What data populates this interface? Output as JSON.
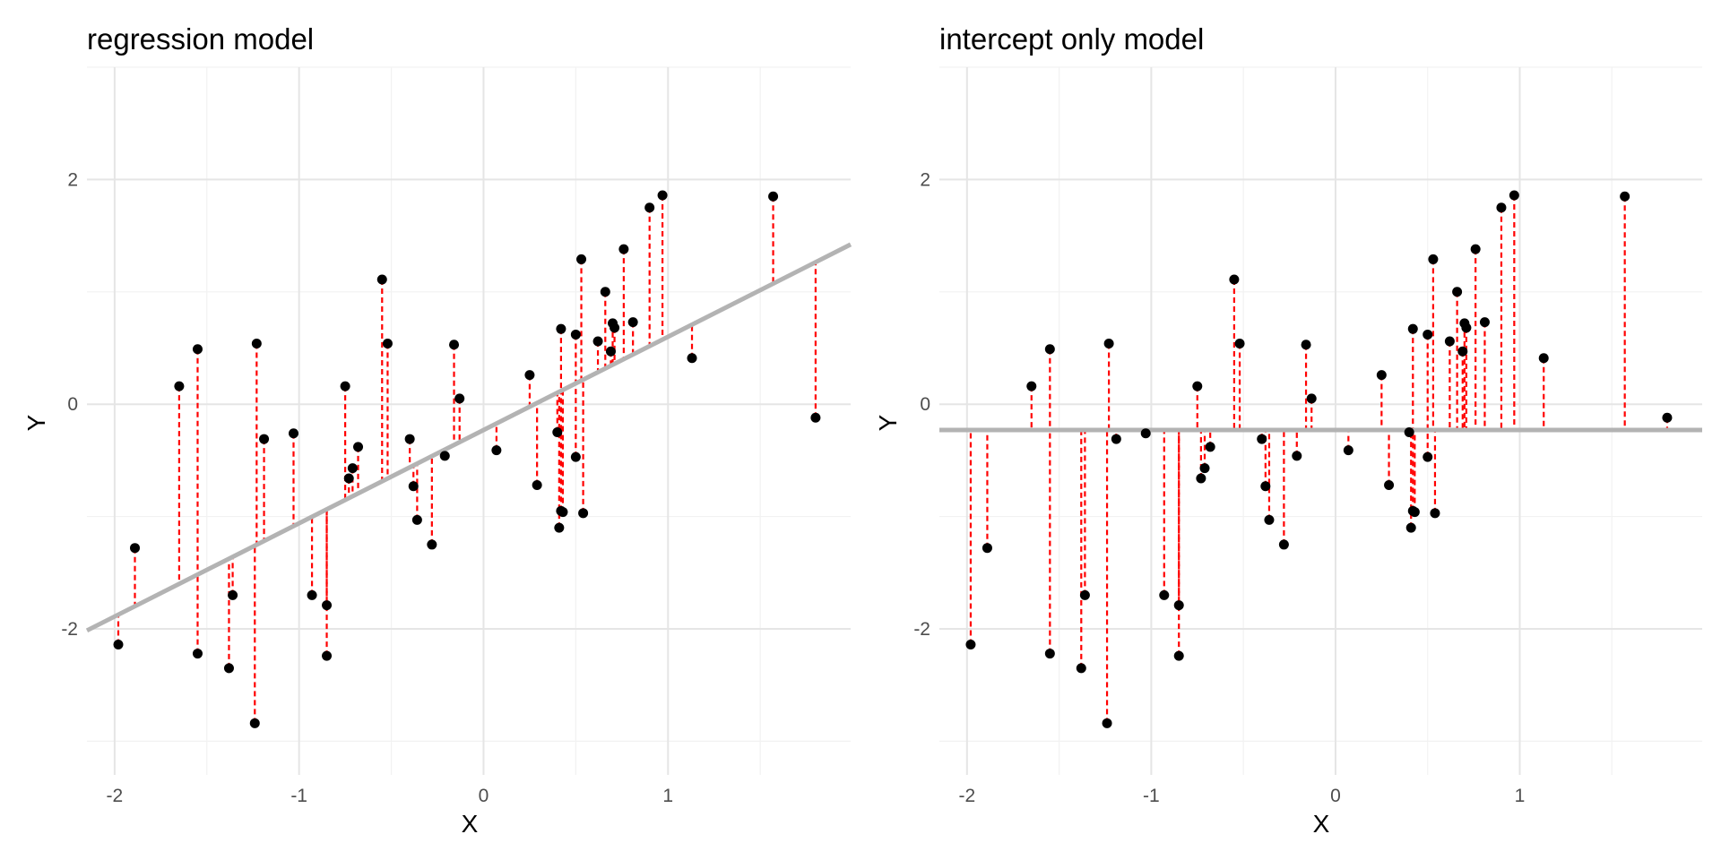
{
  "chart_data": [
    {
      "type": "scatter",
      "title": "regression model",
      "xlabel": "X",
      "ylabel": "Y",
      "xlim": [
        -2.15,
        1.99
      ],
      "ylim": [
        -3.3,
        3.0
      ],
      "x_ticks": [
        -2,
        -1,
        0,
        1
      ],
      "y_ticks": [
        -2,
        0,
        2
      ],
      "x_tick_labels": [
        "-2",
        "-1",
        "0",
        "1"
      ],
      "y_tick_labels": [
        "-2",
        "0",
        "2"
      ],
      "grid": true,
      "fit_line": {
        "intercept": -0.23,
        "slope": 0.83,
        "color": "#b3b3b3"
      },
      "residuals_color": "#ff0000",
      "point_color": "#000000"
    },
    {
      "type": "scatter",
      "title": "intercept only model",
      "xlabel": "X",
      "ylabel": "Y",
      "xlim": [
        -2.15,
        1.99
      ],
      "ylim": [
        -3.3,
        3.0
      ],
      "x_ticks": [
        -2,
        -1,
        0,
        1
      ],
      "y_ticks": [
        -2,
        0,
        2
      ],
      "x_tick_labels": [
        "-2",
        "-1",
        "0",
        "1"
      ],
      "y_tick_labels": [
        "-2",
        "0",
        "2"
      ],
      "grid": true,
      "fit_line": {
        "intercept": -0.23,
        "slope": 0,
        "color": "#b3b3b3"
      },
      "residuals_color": "#ff0000",
      "point_color": "#000000"
    }
  ],
  "points": {
    "x": [
      -1.98,
      -1.89,
      -1.65,
      -1.55,
      -1.55,
      -1.38,
      -1.36,
      -1.24,
      -1.23,
      -1.19,
      -1.03,
      -0.93,
      -0.85,
      -0.85,
      -0.75,
      -0.73,
      -0.71,
      -0.68,
      -0.55,
      -0.52,
      -0.4,
      -0.38,
      -0.36,
      -0.28,
      -0.21,
      -0.16,
      -0.13,
      0.07,
      0.25,
      0.29,
      0.4,
      0.41,
      0.42,
      0.42,
      0.43,
      0.5,
      0.5,
      0.53,
      0.54,
      0.62,
      0.66,
      0.69,
      0.7,
      0.71,
      0.76,
      0.81,
      0.9,
      0.97,
      1.13,
      1.57,
      1.8
    ],
    "y": [
      -2.14,
      -1.28,
      0.16,
      -2.22,
      0.49,
      -2.35,
      -1.7,
      -2.84,
      0.54,
      -0.31,
      -0.26,
      -1.7,
      -2.24,
      -1.79,
      0.16,
      -0.66,
      -0.57,
      -0.38,
      1.11,
      0.54,
      -0.31,
      -0.73,
      -1.03,
      -1.25,
      -0.46,
      0.53,
      0.05,
      -0.41,
      0.26,
      -0.72,
      -0.25,
      -1.1,
      -0.95,
      0.67,
      -0.96,
      0.62,
      -0.47,
      1.29,
      -0.97,
      0.56,
      1.0,
      0.47,
      0.72,
      0.68,
      1.38,
      0.73,
      1.75,
      1.86,
      0.41,
      1.85,
      -0.12
    ]
  }
}
